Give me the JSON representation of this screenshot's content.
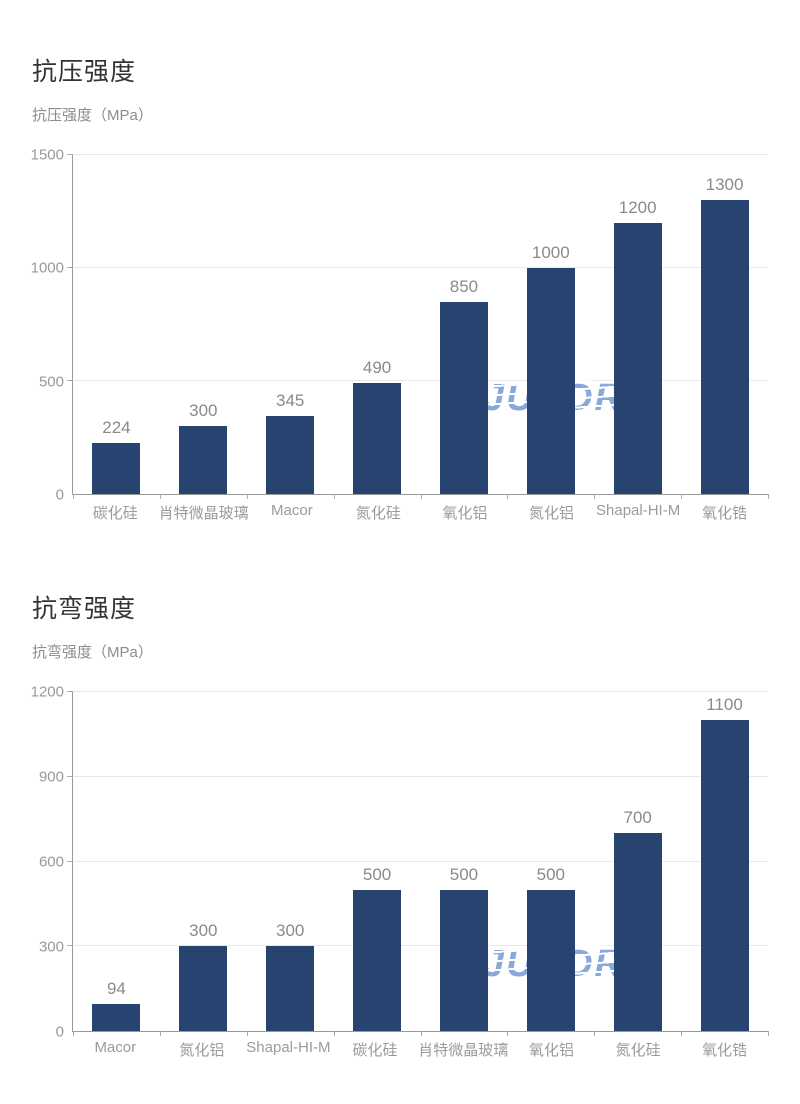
{
  "watermark": {
    "text": "JUNDRO",
    "color": "#4074c4"
  },
  "bar_color": "#274471",
  "chart_data": [
    {
      "type": "bar",
      "title": "抗压强度",
      "subtitle": "抗压强度（MPa）",
      "ylabel": "抗压强度 (MPa)",
      "xlabel": "",
      "categories": [
        "碳化硅",
        "肖特微晶玻璃",
        "Macor",
        "氮化硅",
        "氧化铝",
        "氮化铝",
        "Shapal-HI-M",
        "氧化锆"
      ],
      "values": [
        224,
        300,
        345,
        490,
        850,
        1000,
        1200,
        1300
      ],
      "ylim": [
        0,
        1500
      ],
      "yticks": [
        0,
        500,
        1000,
        1500
      ],
      "grid": true,
      "legend": false,
      "data_labels": true
    },
    {
      "type": "bar",
      "title": "抗弯强度",
      "subtitle": "抗弯强度（MPa）",
      "ylabel": "抗弯强度 (MPa)",
      "xlabel": "",
      "categories": [
        "Macor",
        "氮化铝",
        "Shapal-HI-M",
        "碳化硅",
        "肖特微晶玻璃",
        "氧化铝",
        "氮化硅",
        "氧化锆"
      ],
      "values": [
        94,
        300,
        300,
        500,
        500,
        500,
        700,
        1100
      ],
      "ylim": [
        0,
        1200
      ],
      "yticks": [
        0,
        300,
        600,
        900,
        1200
      ],
      "grid": true,
      "legend": false,
      "data_labels": true
    }
  ]
}
